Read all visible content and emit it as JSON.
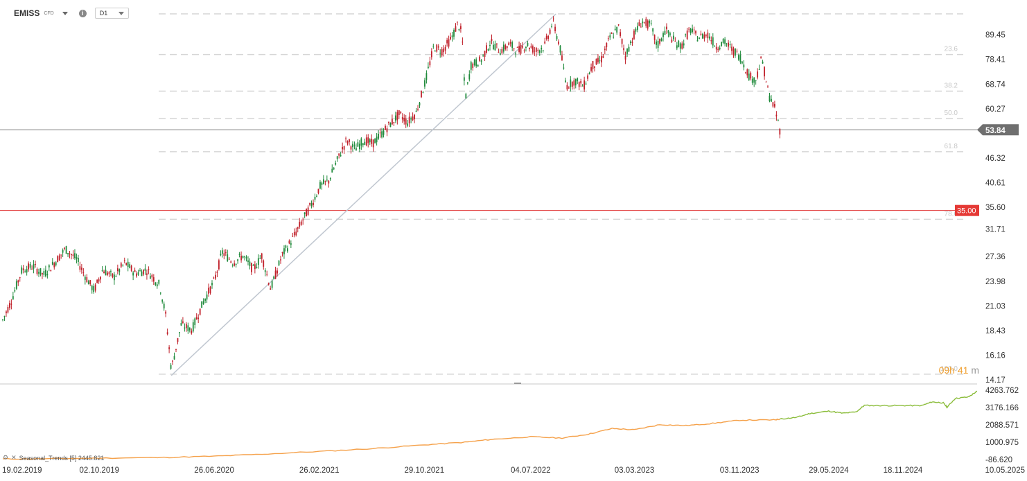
{
  "header": {
    "symbol": "EMISS",
    "instrument_type": "CFD",
    "info_icon": "info-icon",
    "timeframe": "D1"
  },
  "countdown": {
    "hours": "09h",
    "minutes": "41",
    "unit": "m"
  },
  "indicator": {
    "label": "Seasonal_Trends [5] 2445.821",
    "icons": [
      "settings-icon",
      "close-icon"
    ]
  },
  "colors": {
    "up": "#1f8a3b",
    "down": "#c0202a",
    "red_line": "#e03030",
    "grid": "#d6d6d6",
    "projection_line": "#c0c7d0",
    "seasonal_history": "#f5a14a",
    "seasonal_forecast": "#8bbd3b",
    "countdown": "#f0a030"
  },
  "chart_data": [
    {
      "type": "candlestick",
      "title": "EMISS",
      "ylim": [
        14.17,
        100
      ],
      "yscale": "log",
      "y_ticks": [
        89.45,
        78.41,
        68.74,
        60.27,
        46.32,
        40.61,
        35.6,
        31.71,
        27.36,
        23.98,
        21.03,
        18.43,
        16.16,
        14.17
      ],
      "y_tick_labels": [
        "89.45",
        "78.41",
        "68.74",
        "60.27",
        "46.32",
        "40.61",
        "35.60",
        "31.71",
        "27.36",
        "23.98",
        "21.03",
        "18.43",
        "16.16",
        "14.17"
      ],
      "x_ticks": [
        "19.02.2019",
        "02.10.2019",
        "26.06.2020",
        "26.02.2021",
        "29.10.2021",
        "04.07.2022",
        "03.03.2023",
        "03.11.2023",
        "29.05.2024",
        "18.11.2024",
        "10.05.2025"
      ],
      "current_price": {
        "value": 53.84,
        "label": "53.84"
      },
      "price_level": {
        "value": 35.0,
        "label": "35.00"
      },
      "fibonacci_levels": [
        {
          "label": "23.6",
          "value": 80.5
        },
        {
          "label": "38.2",
          "value": 66.2
        },
        {
          "label": "50.0",
          "value": 57.2
        },
        {
          "label": "61.8",
          "value": 47.9
        },
        {
          "label": "78.6",
          "value": 33.4
        },
        {
          "label": "100.0",
          "value": 14.6
        }
      ],
      "trendline": {
        "from": [
          "2020-03-18",
          14.5
        ],
        "to": [
          "2022-09-01",
          100
        ]
      },
      "series": [
        {
          "name": "EMISS",
          "points": [
            [
              "2019-02-19",
              19.5
            ],
            [
              "2019-03-10",
              21.5
            ],
            [
              "2019-04-05",
              25.5
            ],
            [
              "2019-05-01",
              26
            ],
            [
              "2019-05-25",
              24.8
            ],
            [
              "2019-06-20",
              26.5
            ],
            [
              "2019-07-15",
              28.5
            ],
            [
              "2019-08-10",
              27
            ],
            [
              "2019-09-01",
              24.5
            ],
            [
              "2019-09-20",
              22.8
            ],
            [
              "2019-10-10",
              25.5
            ],
            [
              "2019-11-05",
              24.5
            ],
            [
              "2019-12-01",
              26.5
            ],
            [
              "2019-12-25",
              25
            ],
            [
              "2020-01-20",
              25.5
            ],
            [
              "2020-02-20",
              23.5
            ],
            [
              "2020-03-05",
              20
            ],
            [
              "2020-03-18",
              15
            ],
            [
              "2020-04-10",
              19
            ],
            [
              "2020-05-05",
              18.5
            ],
            [
              "2020-06-01",
              21.5
            ],
            [
              "2020-06-26",
              24
            ],
            [
              "2020-07-15",
              28
            ],
            [
              "2020-08-10",
              26.5
            ],
            [
              "2020-09-01",
              27.5
            ],
            [
              "2020-09-25",
              25.5
            ],
            [
              "2020-10-15",
              27.5
            ],
            [
              "2020-11-05",
              23
            ],
            [
              "2020-12-01",
              27.5
            ],
            [
              "2020-12-25",
              30
            ],
            [
              "2021-01-20",
              33.5
            ],
            [
              "2021-02-10",
              36.5
            ],
            [
              "2021-03-01",
              40
            ],
            [
              "2021-03-20",
              41
            ],
            [
              "2021-04-10",
              46
            ],
            [
              "2021-05-01",
              51
            ],
            [
              "2021-05-20",
              48.5
            ],
            [
              "2021-06-10",
              51
            ],
            [
              "2021-06-30",
              50
            ],
            [
              "2021-07-20",
              52.5
            ],
            [
              "2021-08-10",
              55.5
            ],
            [
              "2021-09-01",
              58.5
            ],
            [
              "2021-09-20",
              56
            ],
            [
              "2021-10-10",
              59
            ],
            [
              "2021-11-01",
              70
            ],
            [
              "2021-11-20",
              84
            ],
            [
              "2021-12-10",
              82
            ],
            [
              "2022-01-01",
              88
            ],
            [
              "2022-01-15",
              95
            ],
            [
              "2022-01-25",
              90
            ],
            [
              "2022-02-01",
              63
            ],
            [
              "2022-02-15",
              76
            ],
            [
              "2022-03-10",
              78
            ],
            [
              "2022-04-01",
              86
            ],
            [
              "2022-04-25",
              82
            ],
            [
              "2022-05-15",
              85
            ],
            [
              "2022-06-05",
              82
            ],
            [
              "2022-06-25",
              85
            ],
            [
              "2022-07-15",
              82
            ],
            [
              "2022-08-05",
              84
            ],
            [
              "2022-08-25",
              96
            ],
            [
              "2022-09-10",
              84
            ],
            [
              "2022-09-25",
              68
            ],
            [
              "2022-10-15",
              70
            ],
            [
              "2022-11-05",
              68
            ],
            [
              "2022-11-25",
              76
            ],
            [
              "2022-12-15",
              78
            ],
            [
              "2023-01-05",
              88
            ],
            [
              "2023-01-25",
              93
            ],
            [
              "2023-02-10",
              80
            ],
            [
              "2023-03-03",
              90
            ],
            [
              "2023-03-20",
              96
            ],
            [
              "2023-04-10",
              94
            ],
            [
              "2023-04-25",
              84
            ],
            [
              "2023-05-15",
              92
            ],
            [
              "2023-06-05",
              86
            ],
            [
              "2023-06-20",
              84
            ],
            [
              "2023-07-10",
              92
            ],
            [
              "2023-07-30",
              88
            ],
            [
              "2023-08-20",
              90
            ],
            [
              "2023-09-10",
              84
            ],
            [
              "2023-09-30",
              86
            ],
            [
              "2023-10-20",
              82
            ],
            [
              "2023-11-03",
              80
            ],
            [
              "2023-11-25",
              72
            ],
            [
              "2023-12-10",
              70
            ],
            [
              "2023-12-25",
              79
            ],
            [
              "2024-01-10",
              65
            ],
            [
              "2024-01-25",
              60
            ],
            [
              "2024-02-05",
              53.84
            ]
          ]
        }
      ]
    },
    {
      "type": "line",
      "title": "Seasonal_Trends [5]",
      "ylim": [
        -86.62,
        4263.762
      ],
      "y_ticks": [
        4263.762,
        3176.166,
        2088.571,
        1000.975,
        -86.62
      ],
      "y_tick_labels": [
        "4263.762",
        "3176.166",
        "2088.571",
        "1000.975",
        "-86.620"
      ],
      "series": [
        {
          "name": "history",
          "points": [
            [
              "2019-02-19",
              -50
            ],
            [
              "2019-06-01",
              -40
            ],
            [
              "2019-10-02",
              0
            ],
            [
              "2020-03-01",
              40
            ],
            [
              "2020-06-26",
              120
            ],
            [
              "2020-10-01",
              230
            ],
            [
              "2021-02-26",
              420
            ],
            [
              "2021-07-01",
              600
            ],
            [
              "2021-10-29",
              830
            ],
            [
              "2022-02-01",
              1000
            ],
            [
              "2022-04-01",
              1170
            ],
            [
              "2022-07-04",
              1340
            ],
            [
              "2022-09-15",
              1260
            ],
            [
              "2022-11-15",
              1500
            ],
            [
              "2023-01-10",
              1860
            ],
            [
              "2023-03-03",
              1780
            ],
            [
              "2023-05-01",
              2100
            ],
            [
              "2023-07-01",
              2040
            ],
            [
              "2023-09-01",
              2180
            ],
            [
              "2023-11-03",
              2380
            ],
            [
              "2024-01-20",
              2400
            ],
            [
              "2024-02-05",
              2445.821
            ]
          ]
        },
        {
          "name": "forecast",
          "points": [
            [
              "2024-02-05",
              2445.821
            ],
            [
              "2024-03-15",
              2560
            ],
            [
              "2024-04-15",
              2800
            ],
            [
              "2024-05-29",
              2950
            ],
            [
              "2024-07-01",
              2820
            ],
            [
              "2024-08-01",
              2900
            ],
            [
              "2024-08-20",
              3310
            ],
            [
              "2024-10-01",
              3300
            ],
            [
              "2024-11-18",
              3300
            ],
            [
              "2025-01-01",
              3300
            ],
            [
              "2025-01-25",
              3530
            ],
            [
              "2025-02-20",
              3470
            ],
            [
              "2025-03-01",
              3200
            ],
            [
              "2025-03-20",
              3750
            ],
            [
              "2025-04-20",
              3840
            ],
            [
              "2025-05-10",
              4200
            ]
          ]
        }
      ]
    }
  ]
}
